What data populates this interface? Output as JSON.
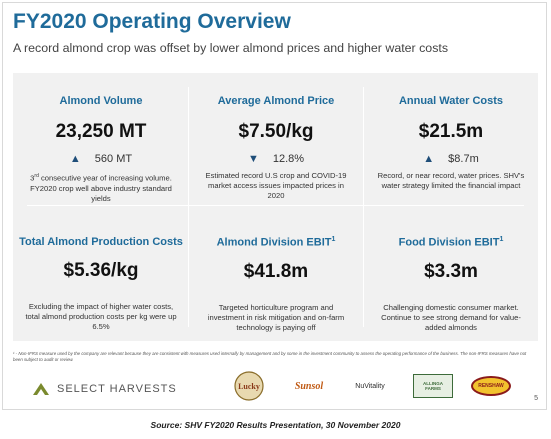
{
  "slide": {
    "title": "FY2020 Operating Overview",
    "subtitle": "A record almond crop was offset by lower almond prices and higher water costs",
    "page_number": "5",
    "footnote": "¹ - Non-IFRS measure used by the company are relevant because they are consistent with measures used internally by management and by some in the investment community to assess the operating performance of the business. The non-IFRS measures have not been subject to audit or review."
  },
  "metrics": [
    {
      "title": "Almond Volume",
      "title_sup": "",
      "value": "23,250 MT",
      "change_direction": "up",
      "change": "560 MT",
      "desc_sup": "rd",
      "desc_prefix": "3",
      "description": " consecutive year of increasing volume. FY2020 crop well above industry standard yields"
    },
    {
      "title": "Average Almond Price",
      "title_sup": "",
      "value": "$7.50/kg",
      "change_direction": "down",
      "change": "12.8%",
      "desc_sup": "",
      "desc_prefix": "",
      "description": "Estimated record U.S crop and COVID-19 market access issues impacted prices in 2020"
    },
    {
      "title": "Annual Water Costs",
      "title_sup": "",
      "value": "$21.5m",
      "change_direction": "up",
      "change": "$8.7m",
      "desc_sup": "",
      "desc_prefix": "",
      "description": "Record, or near record, water prices. SHV's water strategy limited the financial impact"
    },
    {
      "title": "Total Almond Production Costs",
      "title_sup": "",
      "value": "$5.36/kg",
      "change_direction": "",
      "change": "",
      "desc_sup": "",
      "desc_prefix": "",
      "description": "Excluding the impact of higher water costs, total almond production costs per kg were up 6.5%"
    },
    {
      "title": "Almond Division EBIT",
      "title_sup": "1",
      "value": "$41.8m",
      "change_direction": "",
      "change": "",
      "desc_sup": "",
      "desc_prefix": "",
      "description": "Targeted horticulture program and investment in risk mitigation and on-farm technology is paying off"
    },
    {
      "title": "Food Division EBIT",
      "title_sup": "1",
      "value": "$3.3m",
      "change_direction": "",
      "change": "",
      "desc_sup": "",
      "desc_prefix": "",
      "description": "Challenging domestic consumer market. Continue to see strong demand for value-added almonds"
    }
  ],
  "footer": {
    "brand": "SELECT HARVESTS",
    "logos": [
      "Lucky",
      "Sunsol",
      "NuVitality",
      "ALLINGA FARMS",
      "RENSHAW"
    ]
  },
  "caption": "Source: SHV FY2020 Results Presentation, 30 November 2020",
  "colors": {
    "title_blue": "#1f6b9a",
    "panel_bg": "#f1f1f1",
    "arrow_blue": "#1f4e79"
  },
  "icons": {
    "up": "triangle-up-icon",
    "down": "triangle-down-icon"
  }
}
